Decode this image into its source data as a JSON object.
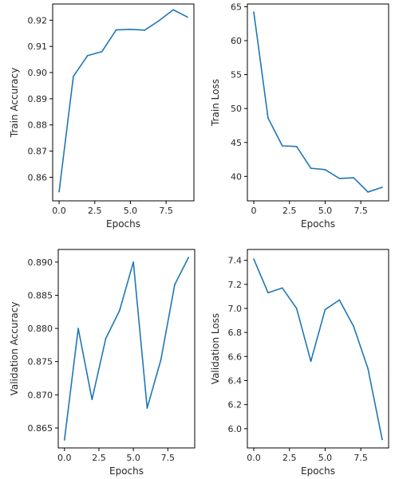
{
  "colors": {
    "line": "#1f77b4"
  },
  "chart_data": [
    {
      "id": "train-accuracy",
      "type": "line",
      "xlabel": "Epochs",
      "ylabel": "Train Accuracy",
      "x": [
        0,
        1,
        2,
        3,
        4,
        5,
        6,
        7,
        8,
        9
      ],
      "values": [
        0.8545,
        0.8985,
        0.9065,
        0.908,
        0.9163,
        0.9165,
        0.9162,
        0.9198,
        0.924,
        0.9212
      ],
      "xlim": [
        -0.45,
        9.45
      ],
      "ylim": [
        0.851,
        0.9262
      ],
      "xticks": [
        "0.0",
        "2.5",
        "5.0",
        "7.5"
      ],
      "yticks": [
        "0.86",
        "0.87",
        "0.88",
        "0.89",
        "0.90",
        "0.91",
        "0.92"
      ]
    },
    {
      "id": "train-loss",
      "type": "line",
      "xlabel": "Epochs",
      "ylabel": "Train Loss",
      "x": [
        0,
        1,
        2,
        3,
        4,
        5,
        6,
        7,
        8,
        9
      ],
      "values": [
        64.2,
        48.6,
        44.5,
        44.4,
        41.2,
        41.0,
        39.7,
        39.8,
        37.7,
        38.4
      ],
      "xlim": [
        -0.45,
        9.45
      ],
      "ylim": [
        36.4,
        65.4
      ],
      "xticks": [
        "0",
        "2.5",
        "5.0",
        "7.5"
      ],
      "yticks": [
        "40",
        "45",
        "50",
        "55",
        "60",
        "65"
      ]
    },
    {
      "id": "validation-accuracy",
      "type": "line",
      "xlabel": "Epochs",
      "ylabel": "Validation Accuracy",
      "x": [
        0,
        1,
        2,
        3,
        4,
        5,
        6,
        7,
        8,
        9
      ],
      "values": [
        0.8632,
        0.88,
        0.8693,
        0.8785,
        0.8827,
        0.89,
        0.868,
        0.8753,
        0.8866,
        0.8907
      ],
      "xlim": [
        -0.45,
        9.45
      ],
      "ylim": [
        0.862,
        0.8919
      ],
      "xticks": [
        "0.0",
        "2.5",
        "5.0",
        "7.5"
      ],
      "yticks": [
        "0.865",
        "0.870",
        "0.875",
        "0.880",
        "0.885",
        "0.890"
      ]
    },
    {
      "id": "validation-loss",
      "type": "line",
      "xlabel": "Epochs",
      "ylabel": "Validation Loss",
      "x": [
        0,
        1,
        2,
        3,
        4,
        5,
        6,
        7,
        8,
        9
      ],
      "values": [
        7.41,
        7.13,
        7.17,
        7.0,
        6.56,
        6.99,
        7.07,
        6.85,
        6.5,
        5.91
      ],
      "xlim": [
        -0.45,
        9.45
      ],
      "ylim": [
        5.84,
        7.49
      ],
      "xticks": [
        "0.0",
        "2.5",
        "5.0",
        "7.5"
      ],
      "yticks": [
        "6.0",
        "6.2",
        "6.4",
        "6.6",
        "6.8",
        "7.0",
        "7.2",
        "7.4"
      ]
    }
  ]
}
